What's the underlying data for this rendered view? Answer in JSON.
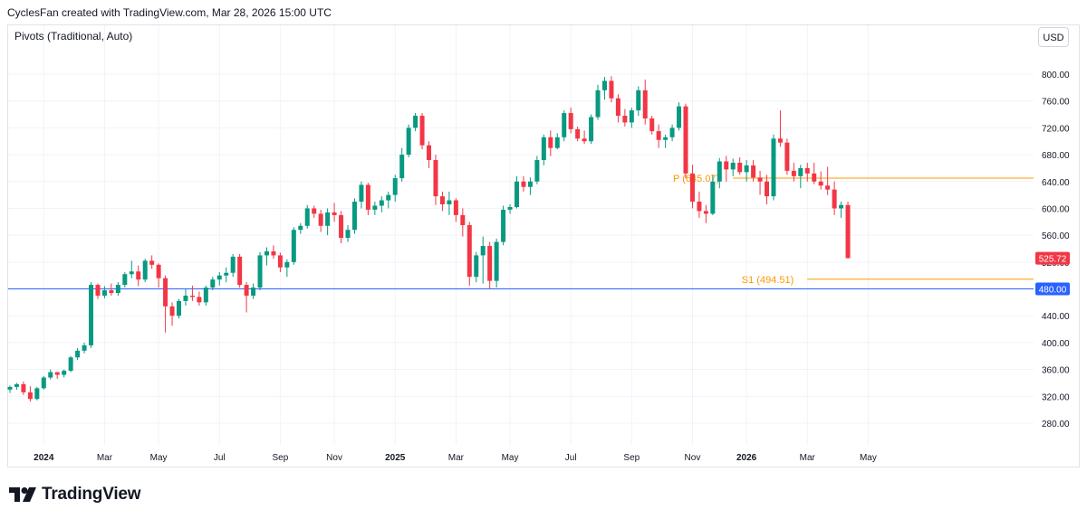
{
  "header": {
    "attribution": "CyclesFan created with TradingView.com, Mar 28, 2026 15:00 UTC"
  },
  "indicator": {
    "label": "Pivots (Traditional, Auto)"
  },
  "currency_button": {
    "label": "USD"
  },
  "brand": {
    "name": "TradingView"
  },
  "colors": {
    "up": "#089981",
    "down": "#f23645",
    "pivot": "#ff9800",
    "support_line": "#2962ff",
    "grid": "#f0f3fa"
  },
  "chart_data": {
    "type": "candlestick",
    "timeframe": "weekly",
    "y_axis": {
      "ticks": [
        280,
        320,
        360,
        400,
        440,
        480,
        520,
        560,
        600,
        640,
        680,
        720,
        760,
        800
      ],
      "ylim": [
        254,
        826
      ]
    },
    "x_axis": {
      "ticks": [
        {
          "label": "2024",
          "week": 5
        },
        {
          "label": "Mar",
          "week": 14
        },
        {
          "label": "May",
          "week": 22
        },
        {
          "label": "Jul",
          "week": 31
        },
        {
          "label": "Sep",
          "week": 40
        },
        {
          "label": "Nov",
          "week": 48
        },
        {
          "label": "2025",
          "week": 57
        },
        {
          "label": "Mar",
          "week": 66
        },
        {
          "label": "May",
          "week": 74
        },
        {
          "label": "Jul",
          "week": 83
        },
        {
          "label": "Sep",
          "week": 92
        },
        {
          "label": "Nov",
          "week": 101
        },
        {
          "label": "2026",
          "week": 109
        },
        {
          "label": "Mar",
          "week": 118
        },
        {
          "label": "May",
          "week": 127
        }
      ]
    },
    "last_price": {
      "label": "525.72",
      "value": 525.72
    },
    "horizontal_line": {
      "label": "480.00",
      "value": 480.0
    },
    "pivots": [
      {
        "name": "P",
        "label": "P (645.07)",
        "value": 645.07,
        "from_week": 107
      },
      {
        "name": "S1",
        "label": "S1 (494.51)",
        "value": 494.51,
        "from_week": 118
      }
    ],
    "ohlc": [
      [
        330,
        336,
        325,
        334
      ],
      [
        334,
        340,
        330,
        338
      ],
      [
        338,
        342,
        322,
        326
      ],
      [
        326,
        335,
        312,
        316
      ],
      [
        316,
        334,
        314,
        332
      ],
      [
        332,
        350,
        330,
        348
      ],
      [
        348,
        360,
        345,
        356
      ],
      [
        356,
        356,
        346,
        352
      ],
      [
        352,
        360,
        348,
        358
      ],
      [
        358,
        380,
        356,
        378
      ],
      [
        378,
        392,
        374,
        388
      ],
      [
        388,
        400,
        384,
        396
      ],
      [
        396,
        490,
        392,
        486
      ],
      [
        486,
        488,
        465,
        470
      ],
      [
        470,
        484,
        466,
        478
      ],
      [
        478,
        488,
        470,
        474
      ],
      [
        474,
        490,
        470,
        486
      ],
      [
        486,
        505,
        482,
        502
      ],
      [
        502,
        522,
        496,
        506
      ],
      [
        506,
        515,
        484,
        494
      ],
      [
        494,
        525,
        490,
        522
      ],
      [
        522,
        530,
        510,
        516
      ],
      [
        516,
        518,
        482,
        496
      ],
      [
        496,
        500,
        415,
        454
      ],
      [
        454,
        460,
        425,
        440
      ],
      [
        440,
        465,
        436,
        462
      ],
      [
        462,
        480,
        455,
        470
      ],
      [
        470,
        485,
        462,
        468
      ],
      [
        468,
        476,
        455,
        460
      ],
      [
        460,
        485,
        455,
        482
      ],
      [
        482,
        498,
        478,
        494
      ],
      [
        494,
        505,
        485,
        500
      ],
      [
        500,
        512,
        490,
        504
      ],
      [
        504,
        532,
        498,
        528
      ],
      [
        528,
        532,
        482,
        486
      ],
      [
        486,
        490,
        445,
        470
      ],
      [
        470,
        488,
        465,
        482
      ],
      [
        482,
        535,
        478,
        530
      ],
      [
        530,
        542,
        515,
        536
      ],
      [
        536,
        545,
        525,
        530
      ],
      [
        530,
        534,
        505,
        512
      ],
      [
        512,
        524,
        498,
        520
      ],
      [
        520,
        572,
        516,
        568
      ],
      [
        568,
        578,
        562,
        574
      ],
      [
        574,
        605,
        570,
        600
      ],
      [
        600,
        604,
        586,
        592
      ],
      [
        592,
        598,
        565,
        574
      ],
      [
        574,
        600,
        560,
        594
      ],
      [
        594,
        608,
        580,
        590
      ],
      [
        590,
        596,
        548,
        556
      ],
      [
        556,
        575,
        550,
        568
      ],
      [
        568,
        615,
        562,
        610
      ],
      [
        610,
        640,
        600,
        635
      ],
      [
        635,
        638,
        590,
        598
      ],
      [
        598,
        610,
        590,
        604
      ],
      [
        604,
        618,
        594,
        612
      ],
      [
        612,
        625,
        600,
        620
      ],
      [
        620,
        650,
        610,
        645
      ],
      [
        645,
        690,
        640,
        680
      ],
      [
        680,
        725,
        676,
        720
      ],
      [
        720,
        742,
        715,
        738
      ],
      [
        738,
        742,
        688,
        694
      ],
      [
        694,
        700,
        660,
        672
      ],
      [
        672,
        680,
        605,
        618
      ],
      [
        618,
        625,
        596,
        606
      ],
      [
        606,
        625,
        590,
        612
      ],
      [
        612,
        615,
        580,
        590
      ],
      [
        590,
        600,
        558,
        575
      ],
      [
        575,
        580,
        485,
        498
      ],
      [
        498,
        535,
        490,
        530
      ],
      [
        530,
        558,
        488,
        544
      ],
      [
        544,
        550,
        480,
        492
      ],
      [
        492,
        555,
        482,
        550
      ],
      [
        550,
        604,
        545,
        598
      ],
      [
        598,
        606,
        592,
        602
      ],
      [
        602,
        648,
        600,
        640
      ],
      [
        640,
        648,
        625,
        632
      ],
      [
        632,
        646,
        620,
        640
      ],
      [
        640,
        678,
        636,
        672
      ],
      [
        672,
        710,
        664,
        706
      ],
      [
        706,
        716,
        678,
        690
      ],
      [
        690,
        712,
        688,
        706
      ],
      [
        706,
        746,
        700,
        742
      ],
      [
        742,
        750,
        712,
        718
      ],
      [
        718,
        722,
        700,
        704
      ],
      [
        704,
        716,
        696,
        700
      ],
      [
        700,
        740,
        696,
        736
      ],
      [
        736,
        784,
        732,
        776
      ],
      [
        776,
        796,
        762,
        790
      ],
      [
        790,
        797,
        758,
        764
      ],
      [
        764,
        770,
        728,
        738
      ],
      [
        738,
        748,
        722,
        728
      ],
      [
        728,
        750,
        720,
        746
      ],
      [
        746,
        782,
        738,
        776
      ],
      [
        776,
        792,
        725,
        734
      ],
      [
        734,
        738,
        710,
        715
      ],
      [
        715,
        725,
        690,
        702
      ],
      [
        702,
        710,
        690,
        706
      ],
      [
        706,
        725,
        700,
        720
      ],
      [
        720,
        758,
        716,
        752
      ],
      [
        752,
        756,
        645,
        652
      ],
      [
        652,
        665,
        600,
        610
      ],
      [
        610,
        625,
        586,
        596
      ],
      [
        596,
        605,
        578,
        592
      ],
      [
        592,
        650,
        590,
        640
      ],
      [
        640,
        675,
        630,
        670
      ],
      [
        670,
        678,
        640,
        658
      ],
      [
        658,
        674,
        648,
        668
      ],
      [
        668,
        676,
        650,
        654
      ],
      [
        654,
        672,
        640,
        664
      ],
      [
        664,
        672,
        640,
        646
      ],
      [
        646,
        656,
        620,
        640
      ],
      [
        640,
        650,
        606,
        618
      ],
      [
        618,
        710,
        612,
        704
      ],
      [
        704,
        746,
        692,
        698
      ],
      [
        698,
        704,
        650,
        656
      ],
      [
        656,
        668,
        640,
        648
      ],
      [
        648,
        665,
        630,
        660
      ],
      [
        660,
        668,
        640,
        652
      ],
      [
        652,
        668,
        636,
        640
      ],
      [
        640,
        655,
        628,
        634
      ],
      [
        634,
        662,
        620,
        628
      ],
      [
        628,
        640,
        590,
        600
      ],
      [
        600,
        610,
        586,
        605
      ],
      [
        605,
        610,
        525,
        526
      ]
    ]
  }
}
